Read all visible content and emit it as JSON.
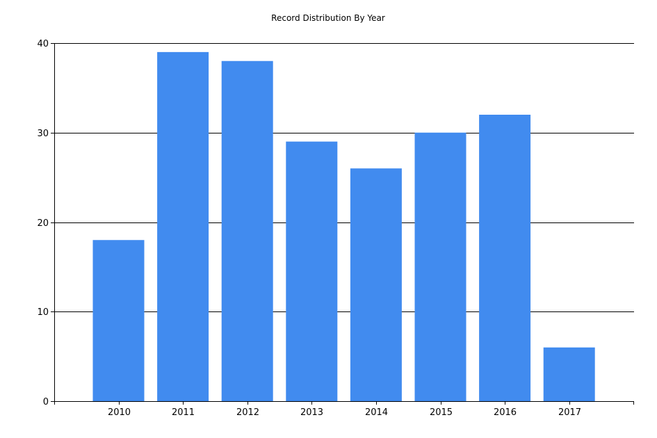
{
  "colors": {
    "bar": "#418BEF",
    "grid": "#000000",
    "axis": "#000000",
    "background": "#FFFFFF"
  },
  "chart_data": {
    "type": "bar",
    "title": "Record Distribution By Year",
    "xlabel": "",
    "ylabel": "",
    "categories": [
      "2010",
      "2011",
      "2012",
      "2013",
      "2014",
      "2015",
      "2016",
      "2017"
    ],
    "values": [
      18,
      39,
      38,
      29,
      26,
      30,
      32,
      6
    ],
    "ylim": [
      0,
      40
    ],
    "yticks": [
      0,
      10,
      20,
      30,
      40
    ],
    "grid": true,
    "legend": "none"
  }
}
